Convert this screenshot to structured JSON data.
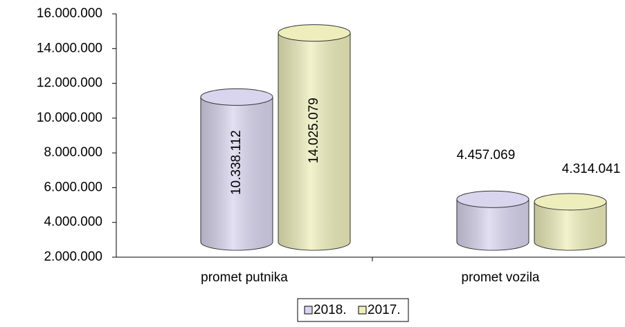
{
  "chart_data": {
    "type": "bar3d",
    "categories": [
      "promet putnika",
      "promet vozila"
    ],
    "series": [
      {
        "name": "2018.",
        "color": "#d9d5ee",
        "values": [
          10338112,
          4457069
        ],
        "value_labels": [
          "10.338.112",
          "4.457.069"
        ]
      },
      {
        "name": "2017.",
        "color": "#eeeebc",
        "values": [
          14025079,
          4314041
        ],
        "value_labels": [
          "14.025.079",
          "4.314.041"
        ]
      }
    ],
    "ylim": [
      2000000,
      16000000
    ],
    "yticks": [
      {
        "value": 2000000,
        "label": "2.000.000"
      },
      {
        "value": 4000000,
        "label": "4.000.000"
      },
      {
        "value": 6000000,
        "label": "6.000.000"
      },
      {
        "value": 8000000,
        "label": "8.000.000"
      },
      {
        "value": 10000000,
        "label": "10.000.000"
      },
      {
        "value": 12000000,
        "label": "12.000.000"
      },
      {
        "value": 14000000,
        "label": "14.000.000"
      },
      {
        "value": 16000000,
        "label": "16.000.000"
      }
    ],
    "legend": "bottom"
  }
}
